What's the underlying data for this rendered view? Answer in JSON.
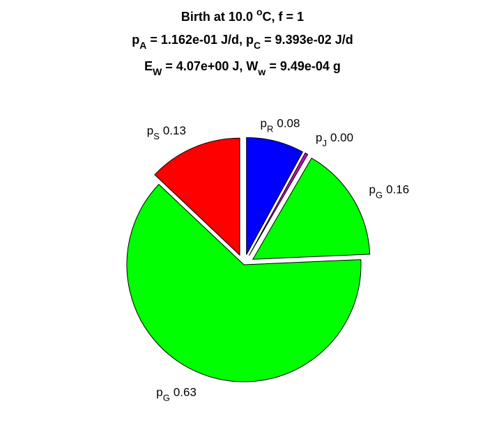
{
  "chart_data": {
    "type": "pie",
    "title": [
      [
        {
          "text": "Birth at 10.0 "
        },
        {
          "text": "o",
          "shift": "sup"
        },
        {
          "text": "C, f = 1"
        }
      ],
      [
        {
          "text": "p"
        },
        {
          "text": "A",
          "shift": "sub"
        },
        {
          "text": " = 1.162e-01 J/d, p"
        },
        {
          "text": "C",
          "shift": "sub"
        },
        {
          "text": " = 9.393e-02 J/d"
        }
      ],
      [
        {
          "text": "E"
        },
        {
          "text": "W",
          "shift": "sub"
        },
        {
          "text": " = 4.07e+00 J, W"
        },
        {
          "text": "w",
          "shift": "sub"
        },
        {
          "text": " = 9.49e-04 g"
        }
      ]
    ],
    "label_symbol": "p",
    "categories": [
      "R",
      "J",
      "G",
      "G",
      "S"
    ],
    "values": [
      0.08,
      0.004,
      0.16,
      0.63,
      0.13
    ],
    "value_labels": [
      "0.08",
      "0.00",
      "0.16",
      "0.63",
      "0.13"
    ],
    "colors": [
      "#0000ff",
      "#cc00cc",
      "#00ff00",
      "#00ff00",
      "#ff0000"
    ],
    "explode": [
      true,
      true,
      true,
      false,
      true
    ]
  }
}
